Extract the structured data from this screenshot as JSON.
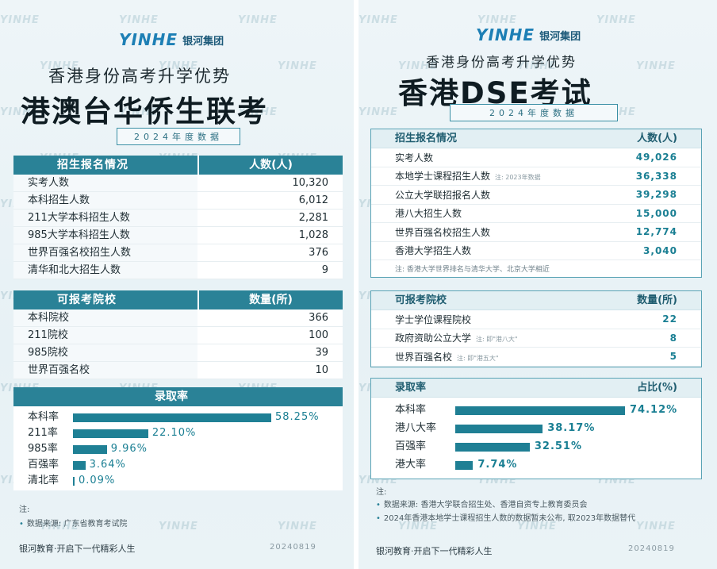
{
  "left": {
    "logo_mark": "YINHE",
    "logo_text": "银河集团",
    "subtitle": "香港身份高考升学优势",
    "title": "港澳台华侨生联考",
    "year_label": "2024年度数据",
    "enroll": {
      "head_label": "招生报名情况",
      "head_value": "人数(人)",
      "rows": [
        {
          "label": "实考人数",
          "value": "10,320"
        },
        {
          "label": "本科招生人数",
          "value": "6,012"
        },
        {
          "label": "211大学本科招生人数",
          "value": "2,281"
        },
        {
          "label": "985大学本科招生人数",
          "value": "1,028"
        },
        {
          "label": "世界百强名校招生人数",
          "value": "376"
        },
        {
          "label": "清华和北大招生人数",
          "value": "9"
        }
      ]
    },
    "schools": {
      "head_label": "可报考院校",
      "head_value": "数量(所)",
      "rows": [
        {
          "label": "本科院校",
          "value": "366"
        },
        {
          "label": "211院校",
          "value": "100"
        },
        {
          "label": "985院校",
          "value": "39"
        },
        {
          "label": "世界百强名校",
          "value": "10"
        }
      ]
    },
    "rates": {
      "head_label": "录取率",
      "rows": [
        {
          "label": "本科率",
          "value": 58.25,
          "text": "58.25%"
        },
        {
          "label": "211率",
          "value": 22.1,
          "text": "22.10%"
        },
        {
          "label": "985率",
          "value": 9.96,
          "text": "9.96%"
        },
        {
          "label": "百强率",
          "value": 3.64,
          "text": "3.64%"
        },
        {
          "label": "清北率",
          "value": 0.09,
          "text": "0.09%"
        }
      ]
    },
    "note_title": "注:",
    "notes": [
      "数据来源: 广东省教育考试院"
    ],
    "footer": "银河教育·开启下一代精彩人生",
    "date": "20240819"
  },
  "right": {
    "logo_mark": "YINHE",
    "logo_text": "银河集团",
    "subtitle": "香港身份高考升学优势",
    "title": "香港DSE考试",
    "year_label": "2024年度数据",
    "enroll": {
      "head_label": "招生报名情况",
      "head_value": "人数(人)",
      "rows": [
        {
          "label": "实考人数",
          "value": "49,026",
          "note": ""
        },
        {
          "label": "本地学士课程招生人数",
          "value": "36,338",
          "note": "注: 2023年数据"
        },
        {
          "label": "公立大学联招报名人数",
          "value": "39,298",
          "note": ""
        },
        {
          "label": "港八大招生人数",
          "value": "15,000",
          "note": ""
        },
        {
          "label": "世界百强名校招生人数",
          "value": "12,774",
          "note": ""
        },
        {
          "label": "香港大学招生人数",
          "value": "3,040",
          "note": ""
        }
      ],
      "footnote": "注: 香港大学世界排名与清华大学、北京大学相近"
    },
    "schools": {
      "head_label": "可报考院校",
      "head_value": "数量(所)",
      "rows": [
        {
          "label": "学士学位课程院校",
          "value": "22",
          "note": ""
        },
        {
          "label": "政府资助公立大学",
          "value": "8",
          "note": "注: 即\"港八大\""
        },
        {
          "label": "世界百强名校",
          "value": "5",
          "note": "注: 即\"港五大\""
        }
      ]
    },
    "rates": {
      "head_label": "录取率",
      "head_value": "占比(%)",
      "rows": [
        {
          "label": "本科率",
          "value": 74.12,
          "text": "74.12%"
        },
        {
          "label": "港八大率",
          "value": 38.17,
          "text": "38.17%"
        },
        {
          "label": "百强率",
          "value": 32.51,
          "text": "32.51%"
        },
        {
          "label": "港大率",
          "value": 7.74,
          "text": "7.74%"
        }
      ]
    },
    "note_title": "注:",
    "notes": [
      "数据来源: 香港大学联合招生处、香港自资专上教育委员会",
      "2024年香港本地学士课程招生人数的数据暂未公布, 取2023年数据替代"
    ],
    "footer": "银河教育·开启下一代精彩人生",
    "date": "20240819"
  },
  "watermark": "YINHE"
}
